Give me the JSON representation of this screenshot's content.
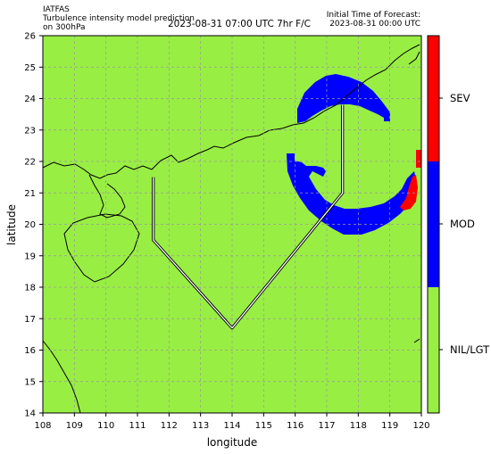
{
  "header": {
    "system": "IATFAS",
    "description": "Turbulence intensity model prediction",
    "level": "on 300hPa",
    "valid_time": "2023-08-31 07:00 UTC 7hr F/C",
    "init_label": "Initial Time of Forecast:",
    "init_time": "2023-08-31 00:00 UTC"
  },
  "map": {
    "xlabel": "longitude",
    "ylabel": "latitude",
    "xlim": [
      108,
      120
    ],
    "ylim": [
      14,
      26
    ],
    "x_ticks": [
      "108",
      "109",
      "110",
      "111",
      "112",
      "113",
      "114",
      "115",
      "116",
      "117",
      "118",
      "119",
      "120"
    ],
    "y_ticks": [
      "14",
      "15",
      "16",
      "17",
      "18",
      "19",
      "20",
      "21",
      "22",
      "23",
      "24",
      "25",
      "26"
    ],
    "grid": true,
    "background_category": "NIL/LGT",
    "route": [
      [
        111.5,
        21.5
      ],
      [
        111.5,
        19.5
      ],
      [
        114.0,
        16.7
      ],
      [
        117.5,
        21.0
      ],
      [
        117.5,
        23.8
      ]
    ]
  },
  "colorbar": {
    "categories": [
      {
        "label": "SEV",
        "color": "#ff0000"
      },
      {
        "label": "MOD",
        "color": "#0000ff"
      },
      {
        "label": "NIL/LGT",
        "color": "#99ee44"
      }
    ]
  }
}
